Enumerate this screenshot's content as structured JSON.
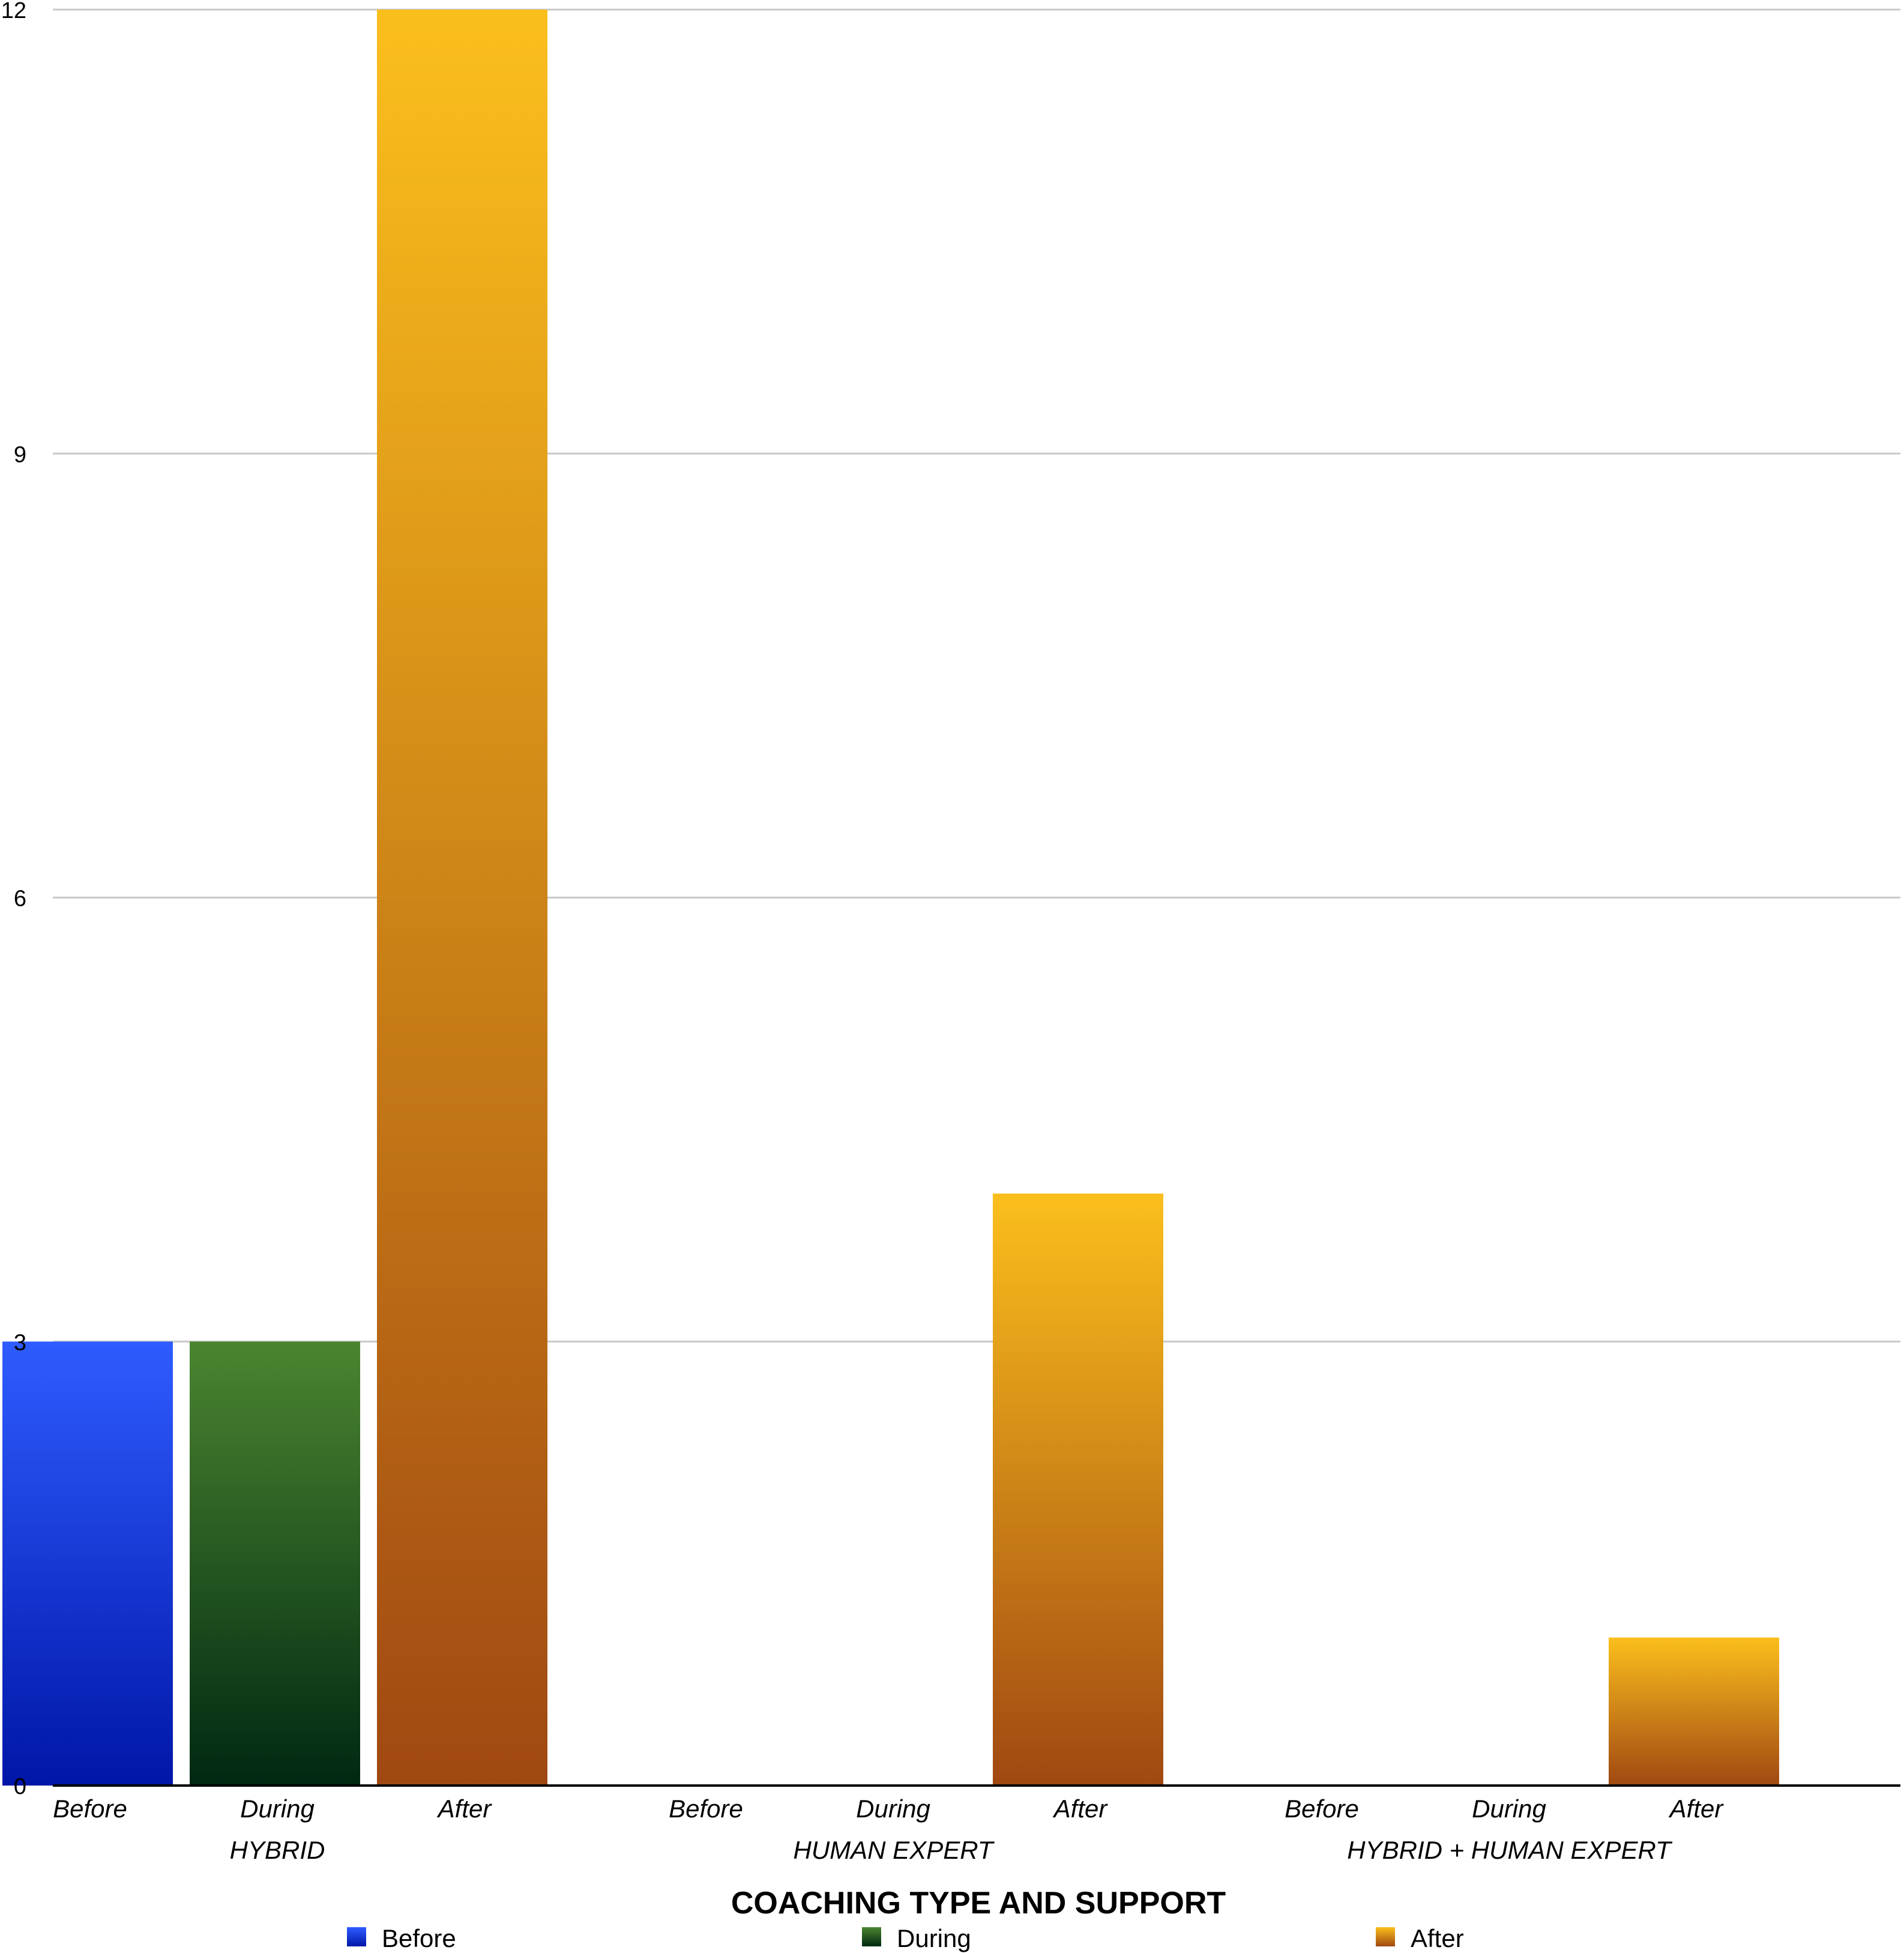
{
  "chart_data": {
    "type": "bar",
    "title": "",
    "xlabel": "COACHING TYPE AND SUPPORT",
    "ylabel": "",
    "ylim": [
      0,
      12
    ],
    "yticks": [
      0,
      3,
      6,
      9,
      12
    ],
    "grid": true,
    "legend_position": "bottom",
    "groups": [
      {
        "name": "HYBRID",
        "bars": [
          {
            "label": "Before",
            "series": "Before",
            "value": 3
          },
          {
            "label": "During",
            "series": "During",
            "value": 3
          },
          {
            "label": "After",
            "series": "After",
            "value": 12
          }
        ]
      },
      {
        "name": "HUMAN EXPERT",
        "bars": [
          {
            "label": "Before",
            "series": "Before",
            "value": 0
          },
          {
            "label": "During",
            "series": "During",
            "value": 0
          },
          {
            "label": "After",
            "series": "After",
            "value": 4
          }
        ]
      },
      {
        "name": "HYBRID +  HUMAN EXPERT",
        "bars": [
          {
            "label": "Before",
            "series": "Before",
            "value": 0
          },
          {
            "label": "During",
            "series": "During",
            "value": 0
          },
          {
            "label": "After",
            "series": "After",
            "value": 1
          }
        ]
      }
    ],
    "series": [
      {
        "name": "Before",
        "color_top": "#2f5cff",
        "color_bottom": "#0016a8"
      },
      {
        "name": "During",
        "color_top": "#4b8530",
        "color_bottom": "#002812"
      },
      {
        "name": "After",
        "color_top": "#fbbf1c",
        "color_bottom": "#a04812"
      }
    ]
  }
}
